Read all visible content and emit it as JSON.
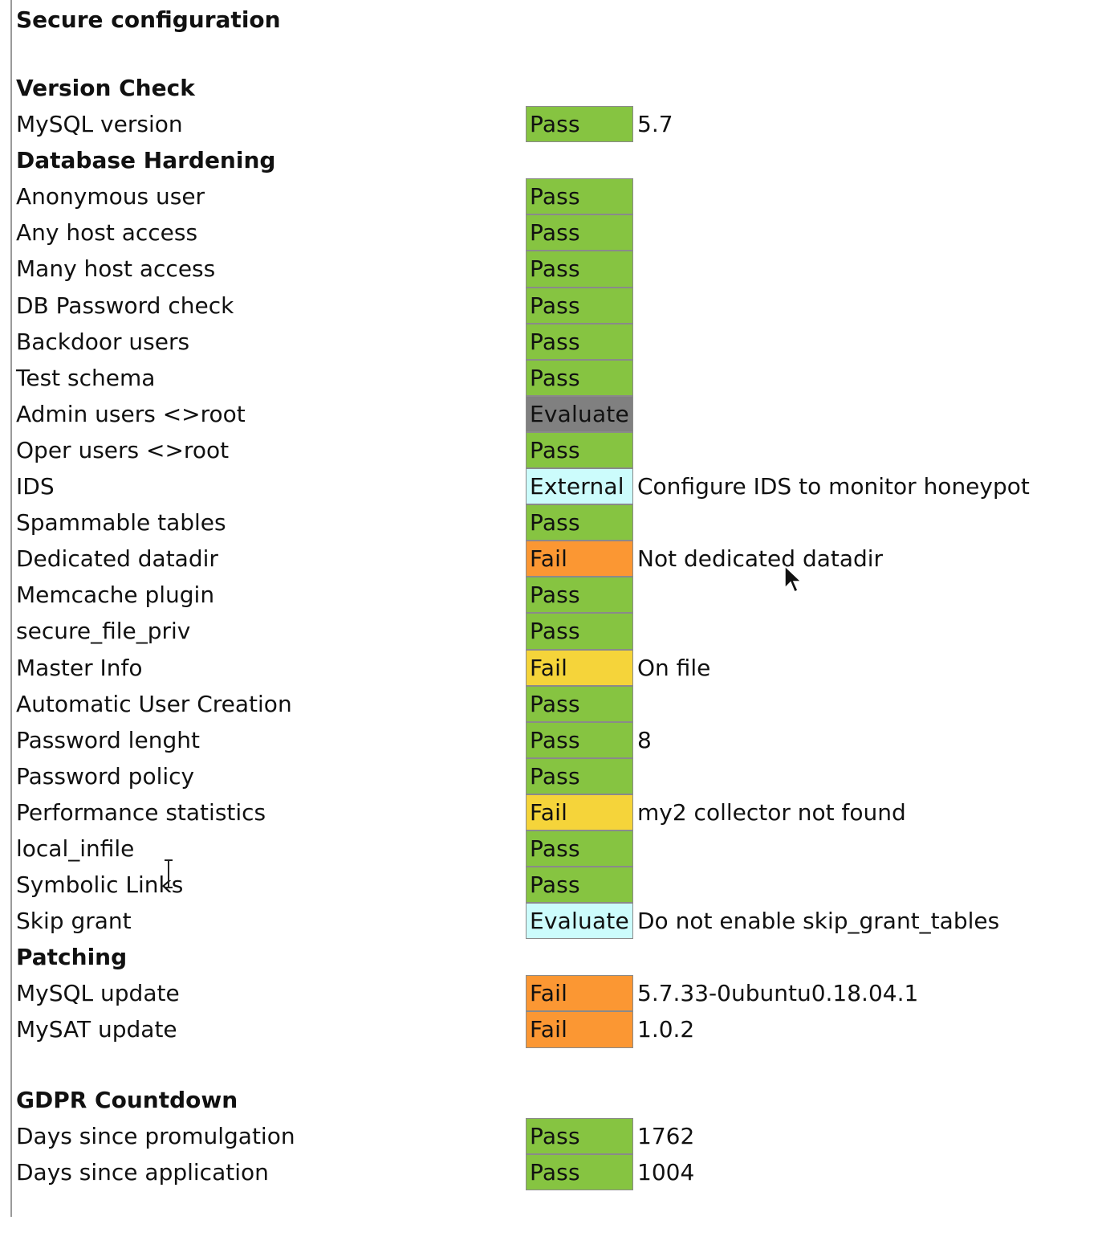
{
  "title": "Secure configuration",
  "status_colors": {
    "Pass": "#86c441",
    "Evaluate-gray": "#808080",
    "External": "#ccfcfc",
    "Evaluate-cyan": "#ccfcfc",
    "Fail-orange": "#fb9733",
    "Fail-yellow": "#f5d43a"
  },
  "sections": [
    {
      "heading": "Version Check",
      "rows": [
        {
          "label": "MySQL version",
          "status": "Pass",
          "color": "#86c441",
          "value": "5.7"
        }
      ]
    },
    {
      "heading": "Database Hardening",
      "rows": [
        {
          "label": "Anonymous user",
          "status": "Pass",
          "color": "#86c441",
          "value": ""
        },
        {
          "label": "Any host access",
          "status": "Pass",
          "color": "#86c441",
          "value": ""
        },
        {
          "label": "Many host access",
          "status": "Pass",
          "color": "#86c441",
          "value": ""
        },
        {
          "label": "DB Password check",
          "status": "Pass",
          "color": "#86c441",
          "value": ""
        },
        {
          "label": "Backdoor users",
          "status": "Pass",
          "color": "#86c441",
          "value": ""
        },
        {
          "label": "Test schema",
          "status": "Pass",
          "color": "#86c441",
          "value": ""
        },
        {
          "label": "Admin users <>root",
          "status": "Evaluate",
          "color": "#808080",
          "value": ""
        },
        {
          "label": "Oper users <>root",
          "status": "Pass",
          "color": "#86c441",
          "value": ""
        },
        {
          "label": "IDS",
          "status": "External",
          "color": "#ccfcfc",
          "value": "Configure IDS to monitor honeypot"
        },
        {
          "label": "Spammable tables",
          "status": "Pass",
          "color": "#86c441",
          "value": ""
        },
        {
          "label": "Dedicated datadir",
          "status": "Fail",
          "color": "#fb9733",
          "value": "Not dedicated datadir"
        },
        {
          "label": "Memcache plugin",
          "status": "Pass",
          "color": "#86c441",
          "value": ""
        },
        {
          "label": "secure_file_priv",
          "status": "Pass",
          "color": "#86c441",
          "value": ""
        },
        {
          "label": "Master Info",
          "status": "Fail",
          "color": "#f5d43a",
          "value": "On file"
        },
        {
          "label": "Automatic User Creation",
          "status": "Pass",
          "color": "#86c441",
          "value": ""
        },
        {
          "label": "Password lenght",
          "status": "Pass",
          "color": "#86c441",
          "value": "8"
        },
        {
          "label": "Password policy",
          "status": "Pass",
          "color": "#86c441",
          "value": ""
        },
        {
          "label": "Performance statistics",
          "status": "Fail",
          "color": "#f5d43a",
          "value": "my2 collector not found"
        },
        {
          "label": "local_infile",
          "status": "Pass",
          "color": "#86c441",
          "value": ""
        },
        {
          "label": "Symbolic Links",
          "status": "Pass",
          "color": "#86c441",
          "value": ""
        },
        {
          "label": "Skip grant",
          "status": "Evaluate",
          "color": "#ccfcfc",
          "value": "Do not enable skip_grant_tables"
        }
      ]
    },
    {
      "heading": "Patching",
      "rows": [
        {
          "label": "MySQL update",
          "status": "Fail",
          "color": "#fb9733",
          "value": "5.7.33-0ubuntu0.18.04.1"
        },
        {
          "label": "MySAT update",
          "status": "Fail",
          "color": "#fb9733",
          "value": "1.0.2"
        }
      ]
    },
    {
      "heading": "GDPR Countdown",
      "gap_before": true,
      "rows": [
        {
          "label": "Days since promulgation",
          "status": "Pass",
          "color": "#86c441",
          "value": "1762"
        },
        {
          "label": "Days since application",
          "status": "Pass",
          "color": "#86c441",
          "value": "1004"
        }
      ]
    }
  ]
}
